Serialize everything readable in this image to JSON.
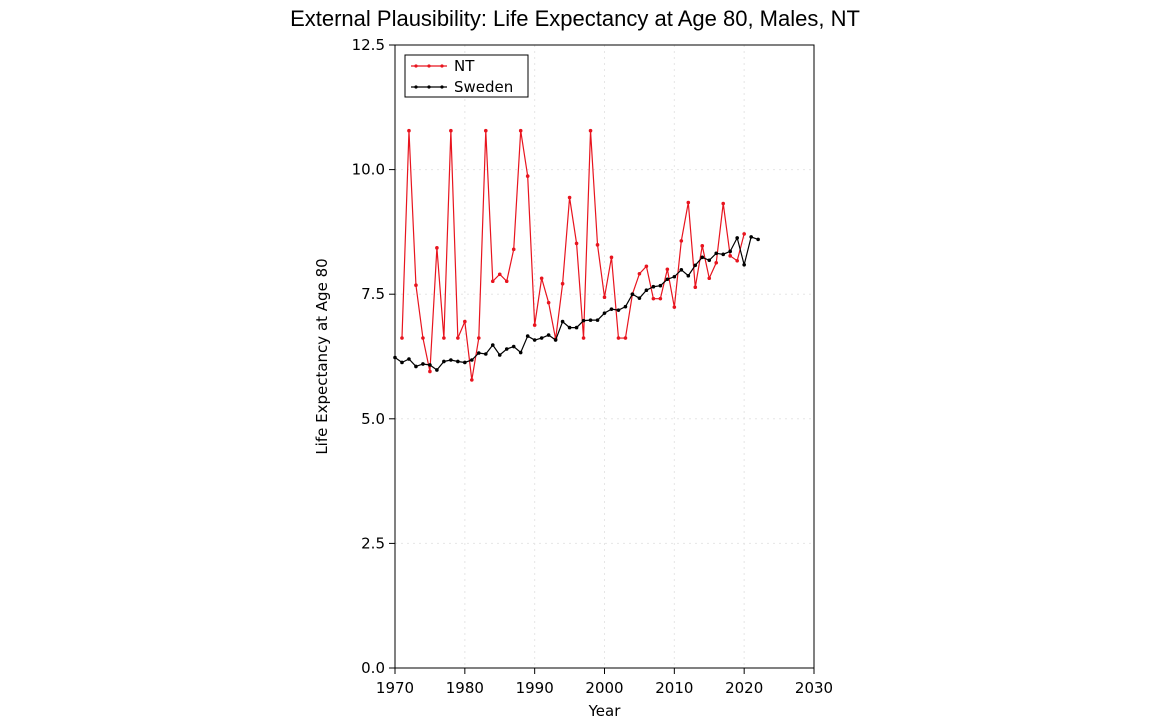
{
  "chart_data": {
    "type": "line",
    "title": "External Plausibility: Life Expectancy at Age 80, Males, NT",
    "xlabel": "Year",
    "ylabel": "Life Expectancy at Age 80",
    "xlim": [
      1970,
      2030
    ],
    "ylim": [
      0,
      12.5
    ],
    "xticks": [
      1970,
      1980,
      1990,
      2000,
      2010,
      2020,
      2030
    ],
    "yticks": [
      0.0,
      2.5,
      5.0,
      7.5,
      10.0,
      12.5
    ],
    "xtick_labels": [
      "1970",
      "1980",
      "1990",
      "2000",
      "2010",
      "2020",
      "2030"
    ],
    "ytick_labels": [
      "0.0",
      "2.5",
      "5.0",
      "7.5",
      "10.0",
      "12.5"
    ],
    "grid": true,
    "legend_position": "top-left",
    "series": [
      {
        "name": "NT",
        "color": "#e8141e",
        "x": [
          1971,
          1972,
          1973,
          1974,
          1975,
          1976,
          1977,
          1978,
          1979,
          1980,
          1981,
          1982,
          1983,
          1984,
          1985,
          1986,
          1987,
          1988,
          1989,
          1990,
          1991,
          1992,
          1993,
          1994,
          1995,
          1996,
          1997,
          1998,
          1999,
          2000,
          2001,
          2002,
          2003,
          2004,
          2005,
          2006,
          2007,
          2008,
          2009,
          2010,
          2011,
          2012,
          2013,
          2014,
          2015,
          2016,
          2017,
          2018,
          2019,
          2020
        ],
        "y": [
          6.62,
          10.78,
          7.68,
          6.62,
          5.95,
          8.43,
          6.62,
          10.78,
          6.62,
          6.95,
          5.78,
          6.62,
          10.78,
          7.76,
          7.9,
          7.76,
          8.4,
          10.78,
          9.87,
          6.88,
          7.82,
          7.33,
          6.6,
          7.71,
          9.44,
          8.52,
          6.62,
          10.78,
          8.49,
          7.44,
          8.24,
          6.62,
          6.62,
          7.5,
          7.91,
          8.06,
          7.41,
          7.41,
          8.0,
          7.24,
          8.57,
          9.34,
          7.64,
          8.47,
          7.82,
          8.13,
          9.32,
          8.27,
          8.17,
          8.71
        ]
      },
      {
        "name": "Sweden",
        "color": "#000000",
        "x": [
          1970,
          1971,
          1972,
          1973,
          1974,
          1975,
          1976,
          1977,
          1978,
          1979,
          1980,
          1981,
          1982,
          1983,
          1984,
          1985,
          1986,
          1987,
          1988,
          1989,
          1990,
          1991,
          1992,
          1993,
          1994,
          1995,
          1996,
          1997,
          1998,
          1999,
          2000,
          2001,
          2002,
          2003,
          2004,
          2005,
          2006,
          2007,
          2008,
          2009,
          2010,
          2011,
          2012,
          2013,
          2014,
          2015,
          2016,
          2017,
          2018,
          2019,
          2020,
          2021,
          2022
        ],
        "y": [
          6.23,
          6.13,
          6.2,
          6.05,
          6.1,
          6.08,
          5.98,
          6.15,
          6.18,
          6.15,
          6.13,
          6.18,
          6.32,
          6.3,
          6.48,
          6.28,
          6.4,
          6.45,
          6.33,
          6.66,
          6.58,
          6.62,
          6.68,
          6.58,
          6.95,
          6.83,
          6.83,
          6.97,
          6.98,
          6.98,
          7.12,
          7.2,
          7.18,
          7.25,
          7.5,
          7.42,
          7.58,
          7.65,
          7.67,
          7.8,
          7.85,
          7.99,
          7.87,
          8.08,
          8.24,
          8.18,
          8.32,
          8.3,
          8.36,
          8.63,
          8.09,
          8.65,
          8.6
        ]
      }
    ]
  }
}
